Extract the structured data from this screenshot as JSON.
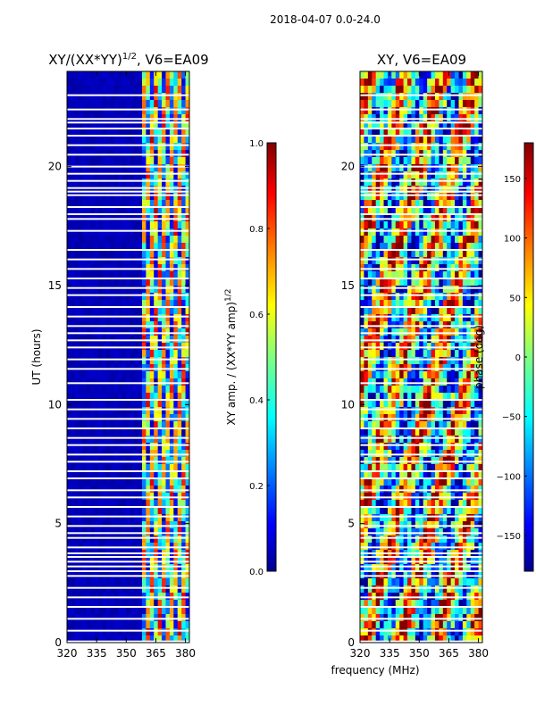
{
  "figure": {
    "suptitle": "2018-04-07 0.0-24.0",
    "xlabel": "frequency (MHz)",
    "ylabel": "UT (hours)"
  },
  "colors": {
    "jet": [
      "#00008f",
      "#0000ff",
      "#0080ff",
      "#00ffff",
      "#80ff80",
      "#ffff00",
      "#ff8000",
      "#ff0000",
      "#800000"
    ],
    "gap": "#ffffff",
    "frame": "#000000"
  },
  "chart_data": [
    {
      "type": "heatmap",
      "title_prefix": "XY/(XX*YY)",
      "title_exp": "1/2",
      "title_suffix": ", V6=EA09",
      "x": {
        "label": "frequency (MHz)",
        "lim": [
          320,
          382
        ],
        "ticks": [
          320,
          335,
          350,
          365,
          380
        ],
        "tick_labels": [
          "320",
          "335",
          "350",
          "365",
          "380"
        ]
      },
      "y": {
        "label": "UT (hours)",
        "lim": [
          0,
          24
        ],
        "ticks": [
          0,
          5,
          10,
          15,
          20
        ],
        "tick_labels": [
          "0",
          "5",
          "10",
          "15",
          "20"
        ]
      },
      "colorbar": {
        "label_text": "XY amp. / (XX*YY amp)",
        "label_exp": "1/2",
        "lim": [
          0.0,
          1.0
        ],
        "ticks": [
          0.0,
          0.2,
          0.4,
          0.6,
          0.8,
          1.0
        ],
        "tick_labels": [
          "0.0",
          "0.2",
          "0.4",
          "0.6",
          "0.8",
          "1.0"
        ]
      },
      "data_gaps_ut": [
        0.05,
        0.5,
        1.0,
        1.5,
        1.9,
        2.3,
        2.8,
        3.0,
        3.2,
        3.4,
        3.6,
        3.75,
        4.0,
        4.4,
        4.6,
        4.9,
        5.3,
        5.7,
        6.1,
        6.4,
        6.9,
        7.2,
        7.6,
        7.9,
        8.3,
        8.6,
        9.0,
        9.4,
        9.8,
        10.2,
        10.9,
        11.5,
        11.9,
        12.4,
        12.7,
        13.0,
        13.3,
        13.7,
        14.1,
        14.6,
        14.9,
        15.3,
        15.7,
        16.1,
        16.5,
        17.3,
        17.8,
        18.0,
        18.3,
        18.8,
        18.95,
        19.1,
        19.4,
        19.7,
        20.0,
        20.5,
        20.9,
        21.3,
        21.6,
        21.85,
        22.0,
        22.4,
        23.0
      ],
      "low_band": {
        "freq_range": [
          320,
          358
        ],
        "typical_amp": 0.03
      },
      "high_band": {
        "freq_range": [
          358,
          382
        ],
        "typical_amp": [
          0.2,
          0.9
        ]
      }
    },
    {
      "type": "heatmap",
      "title_prefix": "XY, V6=EA09",
      "x": {
        "label": "frequency (MHz)",
        "lim": [
          320,
          382
        ],
        "ticks": [
          320,
          335,
          350,
          365,
          380
        ],
        "tick_labels": [
          "320",
          "335",
          "350",
          "365",
          "380"
        ]
      },
      "y": {
        "label": "UT (hours)",
        "lim": [
          0,
          24
        ],
        "ticks": [
          0,
          5,
          10,
          15,
          20
        ],
        "tick_labels": [
          "0",
          "5",
          "10",
          "15",
          "20"
        ]
      },
      "colorbar": {
        "label_text": "phase (deg)",
        "lim": [
          -180,
          180
        ],
        "ticks": [
          -150,
          -100,
          -50,
          0,
          50,
          100,
          150
        ],
        "tick_labels": [
          "−150",
          "−100",
          "−50",
          "0",
          "50",
          "100",
          "150"
        ]
      },
      "data_gaps_ut": [
        0.05,
        0.5,
        1.0,
        1.5,
        1.9,
        2.3,
        2.8,
        3.0,
        3.2,
        3.4,
        3.6,
        3.75,
        4.0,
        4.4,
        4.6,
        4.9,
        5.3,
        5.7,
        6.1,
        6.4,
        6.9,
        7.2,
        7.6,
        7.9,
        8.3,
        8.6,
        9.0,
        9.4,
        9.8,
        10.2,
        10.9,
        11.5,
        11.9,
        12.4,
        12.7,
        13.0,
        13.3,
        13.7,
        14.1,
        14.6,
        14.9,
        15.3,
        15.7,
        16.1,
        16.5,
        17.3,
        17.8,
        18.0,
        18.3,
        18.8,
        18.95,
        19.1,
        19.4,
        19.7,
        20.0,
        20.5,
        20.9,
        21.3,
        21.6,
        21.85,
        22.0,
        22.4,
        23.0
      ],
      "value_range": [
        -180,
        180
      ]
    }
  ]
}
